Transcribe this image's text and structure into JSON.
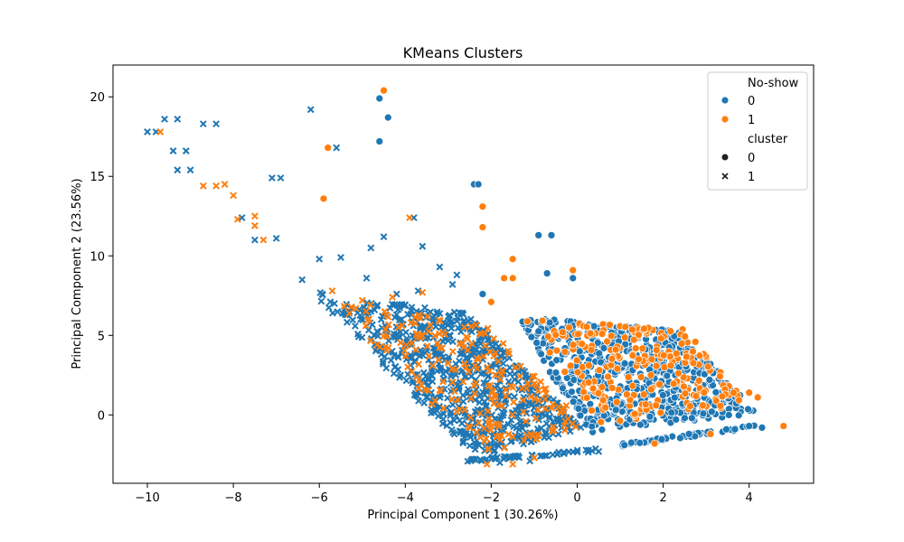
{
  "chart_data": {
    "type": "scatter",
    "title": "KMeans Clusters",
    "xlabel": "Principal Component 1 (30.26%)",
    "ylabel": "Principal Component 2 (23.56%)",
    "xlim": [
      -10.8,
      5.5
    ],
    "ylim": [
      -4.3,
      22.0
    ],
    "x_ticks": [
      -10,
      -8,
      -6,
      -4,
      -2,
      0,
      2,
      4
    ],
    "y_ticks": [
      0,
      5,
      10,
      15,
      20
    ],
    "legend": {
      "position": "top-right",
      "hue_title": "No-show",
      "hue_items": [
        {
          "label": "0",
          "color": "#1f77b4"
        },
        {
          "label": "1",
          "color": "#ff7f0e"
        }
      ],
      "style_title": "cluster",
      "style_items": [
        {
          "label": "0",
          "marker": "circle"
        },
        {
          "label": "1",
          "marker": "x"
        }
      ]
    },
    "series": [
      {
        "name": "No-show 0",
        "color": "#1f77b4",
        "points": [
          {
            "x": -10.0,
            "y": 17.8,
            "m": "x"
          },
          {
            "x": -9.8,
            "y": 17.8,
            "m": "x"
          },
          {
            "x": -9.6,
            "y": 18.6,
            "m": "x"
          },
          {
            "x": -9.3,
            "y": 18.6,
            "m": "x"
          },
          {
            "x": -9.4,
            "y": 16.6,
            "m": "x"
          },
          {
            "x": -9.1,
            "y": 16.6,
            "m": "x"
          },
          {
            "x": -9.3,
            "y": 15.4,
            "m": "x"
          },
          {
            "x": -9.0,
            "y": 15.4,
            "m": "x"
          },
          {
            "x": -8.7,
            "y": 18.3,
            "m": "x"
          },
          {
            "x": -8.4,
            "y": 18.3,
            "m": "x"
          },
          {
            "x": -7.8,
            "y": 12.4,
            "m": "x"
          },
          {
            "x": -7.5,
            "y": 11.0,
            "m": "x"
          },
          {
            "x": -7.1,
            "y": 14.9,
            "m": "x"
          },
          {
            "x": -6.9,
            "y": 14.9,
            "m": "x"
          },
          {
            "x": -7.0,
            "y": 11.1,
            "m": "x"
          },
          {
            "x": -6.2,
            "y": 19.2,
            "m": "x"
          },
          {
            "x": -5.6,
            "y": 16.8,
            "m": "x"
          },
          {
            "x": -4.5,
            "y": 11.2,
            "m": "x"
          },
          {
            "x": -3.8,
            "y": 12.4,
            "m": "x"
          },
          {
            "x": -3.6,
            "y": 10.6,
            "m": "x"
          },
          {
            "x": -6.4,
            "y": 8.5,
            "m": "x"
          },
          {
            "x": -6.0,
            "y": 9.8,
            "m": "x"
          },
          {
            "x": -5.5,
            "y": 9.9,
            "m": "x"
          },
          {
            "x": -4.8,
            "y": 10.5,
            "m": "x"
          },
          {
            "x": -3.2,
            "y": 9.3,
            "m": "x"
          },
          {
            "x": -2.8,
            "y": 8.8,
            "m": "x"
          },
          {
            "x": -4.9,
            "y": 8.6,
            "m": "x"
          },
          {
            "x": -4.2,
            "y": 7.6,
            "m": "x"
          },
          {
            "x": -3.7,
            "y": 7.8,
            "m": "x"
          },
          {
            "x": -2.9,
            "y": 8.2,
            "m": "x"
          },
          {
            "x": -4.6,
            "y": 19.9,
            "m": "o"
          },
          {
            "x": -4.4,
            "y": 18.7,
            "m": "o"
          },
          {
            "x": -4.6,
            "y": 17.2,
            "m": "o"
          },
          {
            "x": -2.4,
            "y": 14.5,
            "m": "o"
          },
          {
            "x": -2.3,
            "y": 14.5,
            "m": "o"
          },
          {
            "x": -0.9,
            "y": 11.3,
            "m": "o"
          },
          {
            "x": -0.6,
            "y": 11.3,
            "m": "o"
          },
          {
            "x": -0.7,
            "y": 8.9,
            "m": "o"
          },
          {
            "x": -0.1,
            "y": 8.6,
            "m": "o"
          },
          {
            "x": -2.2,
            "y": 7.6,
            "m": "o"
          },
          {
            "x": 4.3,
            "y": -0.8,
            "m": "o"
          },
          {
            "x": 4.0,
            "y": -0.7,
            "m": "o"
          },
          {
            "x": 1.1,
            "y": -1.9,
            "m": "o"
          },
          {
            "x": 2.6,
            "y": -1.2,
            "m": "o"
          },
          {
            "x": -1.1,
            "y": -2.9,
            "m": "x"
          },
          {
            "x": -1.8,
            "y": -3.0,
            "m": "x"
          },
          {
            "x": 0.5,
            "y": -2.3,
            "m": "x"
          }
        ]
      },
      {
        "name": "No-show 1",
        "color": "#ff7f0e",
        "points": [
          {
            "x": -9.7,
            "y": 17.8,
            "m": "x"
          },
          {
            "x": -8.7,
            "y": 14.4,
            "m": "x"
          },
          {
            "x": -8.4,
            "y": 14.4,
            "m": "x"
          },
          {
            "x": -8.2,
            "y": 14.5,
            "m": "x"
          },
          {
            "x": -8.0,
            "y": 13.8,
            "m": "x"
          },
          {
            "x": -7.9,
            "y": 12.3,
            "m": "x"
          },
          {
            "x": -7.5,
            "y": 12.5,
            "m": "x"
          },
          {
            "x": -7.5,
            "y": 11.9,
            "m": "x"
          },
          {
            "x": -7.3,
            "y": 11.0,
            "m": "x"
          },
          {
            "x": -3.9,
            "y": 12.4,
            "m": "x"
          },
          {
            "x": -3.6,
            "y": 7.7,
            "m": "x"
          },
          {
            "x": -5.7,
            "y": 7.8,
            "m": "x"
          },
          {
            "x": -4.3,
            "y": 7.4,
            "m": "x"
          },
          {
            "x": -5.0,
            "y": 7.2,
            "m": "x"
          },
          {
            "x": -4.5,
            "y": 20.4,
            "m": "o"
          },
          {
            "x": -5.8,
            "y": 16.8,
            "m": "o"
          },
          {
            "x": -5.9,
            "y": 13.6,
            "m": "o"
          },
          {
            "x": -2.2,
            "y": 13.1,
            "m": "o"
          },
          {
            "x": -2.2,
            "y": 11.8,
            "m": "o"
          },
          {
            "x": -1.5,
            "y": 9.8,
            "m": "o"
          },
          {
            "x": -1.7,
            "y": 8.6,
            "m": "o"
          },
          {
            "x": -1.5,
            "y": 8.6,
            "m": "o"
          },
          {
            "x": -0.1,
            "y": 9.1,
            "m": "o"
          },
          {
            "x": -2.0,
            "y": 7.1,
            "m": "o"
          },
          {
            "x": 4.8,
            "y": -0.7,
            "m": "o"
          },
          {
            "x": 4.0,
            "y": 1.4,
            "m": "o"
          },
          {
            "x": 4.2,
            "y": 1.1,
            "m": "o"
          },
          {
            "x": 3.1,
            "y": -1.2,
            "m": "o"
          },
          {
            "x": 1.8,
            "y": -1.8,
            "m": "o"
          },
          {
            "x": -2.1,
            "y": -3.1,
            "m": "x"
          },
          {
            "x": -1.5,
            "y": -3.1,
            "m": "x"
          },
          {
            "x": -1.0,
            "y": -2.7,
            "m": "x"
          }
        ]
      }
    ],
    "dense_clusters": [
      {
        "series": "No-show 0",
        "marker": "o",
        "corners": [
          [
            -1.4,
            6.2
          ],
          [
            2.4,
            5.3
          ],
          [
            4.2,
            0.1
          ],
          [
            0.2,
            -1.2
          ]
        ],
        "count": 650,
        "x_range": [
          -1.5,
          4.2
        ],
        "y_range": [
          -1.3,
          6.3
        ]
      },
      {
        "series": "No-show 1",
        "marker": "o",
        "corners": [
          [
            -1.2,
            6.0
          ],
          [
            2.5,
            5.4
          ],
          [
            4.0,
            0.6
          ],
          [
            0.4,
            -0.6
          ]
        ],
        "count": 230,
        "x_range": [
          -1.3,
          4.1
        ],
        "y_range": [
          -0.8,
          6.1
        ]
      },
      {
        "series": "No-show 0",
        "marker": "o",
        "corners": [
          [
            1.0,
            -2.0
          ],
          [
            4.2,
            -0.8
          ],
          [
            4.2,
            -0.6
          ],
          [
            1.0,
            -1.8
          ]
        ],
        "count": 60,
        "x_range": [
          1.0,
          4.2
        ],
        "y_range": [
          -2.0,
          -0.6
        ]
      },
      {
        "series": "No-show 0",
        "marker": "x",
        "corners": [
          [
            -6.2,
            7.8
          ],
          [
            -2.6,
            6.4
          ],
          [
            0.2,
            -0.8
          ],
          [
            -2.4,
            -2.7
          ]
        ],
        "count": 700,
        "x_range": [
          -6.2,
          0.3
        ],
        "y_range": [
          -2.8,
          7.9
        ]
      },
      {
        "series": "No-show 1",
        "marker": "x",
        "corners": [
          [
            -5.8,
            7.4
          ],
          [
            -2.2,
            5.8
          ],
          [
            0.2,
            -0.6
          ],
          [
            -2.2,
            -2.6
          ]
        ],
        "count": 220,
        "x_range": [
          -5.8,
          0.3
        ],
        "y_range": [
          -2.7,
          7.5
        ]
      },
      {
        "series": "No-show 0",
        "marker": "x",
        "corners": [
          [
            -2.6,
            -3.0
          ],
          [
            0.5,
            -2.3
          ],
          [
            0.5,
            -2.1
          ],
          [
            -2.6,
            -2.8
          ]
        ],
        "count": 50,
        "x_range": [
          -2.6,
          0.5
        ],
        "y_range": [
          -3.0,
          -2.1
        ]
      }
    ]
  }
}
